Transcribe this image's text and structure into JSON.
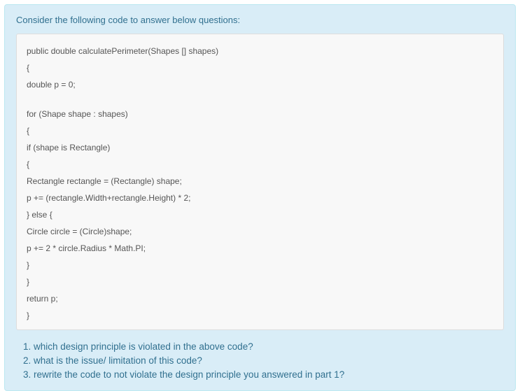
{
  "intro_text": "Consider the following code to answer below questions:",
  "code_lines": [
    "public double calculatePerimeter(Shapes [] shapes)",
    "{",
    "double p = 0;",
    "",
    "for (Shape shape : shapes)",
    "{",
    "if (shape is Rectangle)",
    "{",
    "Rectangle rectangle = (Rectangle) shape;",
    "p += (rectangle.Width+rectangle.Height) * 2;",
    "} else {",
    "Circle circle = (Circle)shape;",
    "p += 2 * circle.Radius * Math.PI;",
    "}",
    "}",
    "return p;",
    "}"
  ],
  "questions": [
    "1. which design principle is violated in the above code?",
    "2. what is the issue/ limitation of this code?",
    "3. rewrite the code to not violate the design principle you answered in part 1?"
  ],
  "colors": {
    "panel_bg": "#d9edf7",
    "panel_border": "#bce8f1",
    "text_info": "#31708f",
    "code_bg": "#f8f8f8",
    "code_border": "#dddddd",
    "code_text": "#555555"
  }
}
